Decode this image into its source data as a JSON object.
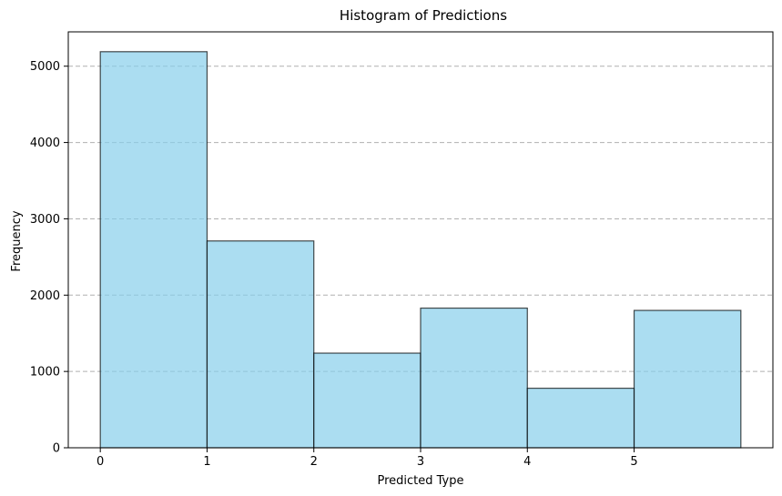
{
  "chart_data": {
    "type": "bar",
    "title": "Histogram of Predictions",
    "xlabel": "Predicted Type",
    "ylabel": "Frequency",
    "bins": [
      {
        "start": 0,
        "end": 1,
        "value": 5190
      },
      {
        "start": 1,
        "end": 2,
        "value": 2710
      },
      {
        "start": 2,
        "end": 3,
        "value": 1240
      },
      {
        "start": 3,
        "end": 4,
        "value": 1830
      },
      {
        "start": 4,
        "end": 5,
        "value": 780
      },
      {
        "start": 5,
        "end": 6,
        "value": 1800
      }
    ],
    "xlim": [
      -0.3,
      6.3
    ],
    "ylim": [
      0,
      5450
    ],
    "xticks": [
      0,
      1,
      2,
      3,
      4,
      5
    ],
    "yticks": [
      0,
      1000,
      2000,
      3000,
      4000,
      5000
    ],
    "grid": "horizontal dashed",
    "colors": {
      "bar_fill": "#87CEEB",
      "bar_edge": "#000000",
      "grid": "#b0b0b0"
    }
  }
}
